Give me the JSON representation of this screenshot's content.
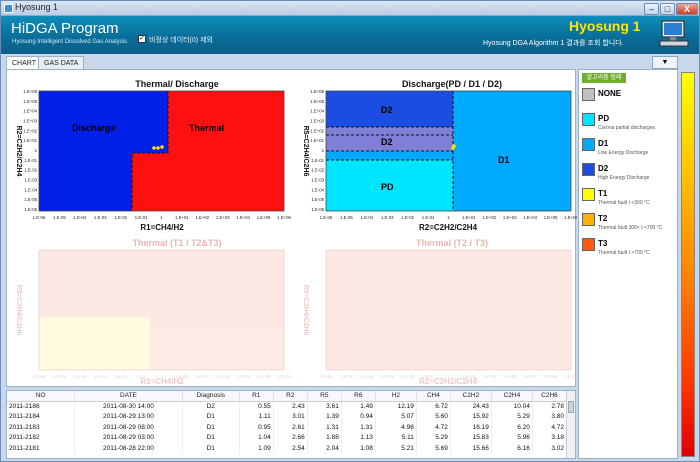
{
  "window": {
    "title": "Hyosung 1",
    "min": "–",
    "max": "□",
    "close": "X"
  },
  "header": {
    "program_title": "HiDGA Program",
    "program_subtitle": "Hyosung Intelligent Dissolved Gas Analysis",
    "checkbox_mark": "✓",
    "checkbox_label": "비정상 데이터(0) 제외",
    "brand": "Hyosung 1",
    "brand_sub": "Hyosung DGA Algorithm 1 결과를 조회 합니다."
  },
  "tabs": [
    {
      "label": "CHART"
    },
    {
      "label": "GAS DATA"
    }
  ],
  "dropdown_label": "▼",
  "charts": {
    "c1": {
      "title": "Thermal/ Discharge",
      "xlabel": "R1=CH4/H2",
      "ylabel": "R2=C2H2/C2H4",
      "regions": [
        {
          "label": "Discharge"
        },
        {
          "label": "Thermal"
        }
      ]
    },
    "c2": {
      "title": "Discharge(PD / D1 / D2)",
      "xlabel": "R2=C2H2/C2H4",
      "ylabel": "R5=C2H4/C2H6",
      "regions": [
        {
          "label": "D2"
        },
        {
          "label": "D2"
        },
        {
          "label": "PD"
        },
        {
          "label": "D1"
        }
      ]
    },
    "c3": {
      "title": "Thermal (T1 / T2&T3)",
      "xlabel": "R1=CH4/H2",
      "ylabel": "R5=C2H4/C2H6"
    },
    "c4": {
      "title": "Thermal (T2 / T3)",
      "xlabel": "R2=C2H2/C2H4",
      "ylabel": "R5=C2H4/C2H6"
    },
    "x_ticks": [
      "1.E-06",
      "1.E-05",
      "1.E-04",
      "1.E-03",
      "1.E-02",
      "1.E-01",
      "1",
      "1.E+01",
      "1.E+02",
      "1.E+03",
      "1.E+04",
      "1.E+05",
      "1.E+06"
    ],
    "y_ticks": [
      "1.E+06",
      "1.E+05",
      "1.E+04",
      "1.E+03",
      "1.E+02",
      "1.E+01",
      "1",
      "1.E-01",
      "1.E-02",
      "1.E-03",
      "1.E-04",
      "1.E-05",
      "1.E-06"
    ],
    "colors": {
      "discharge": "#0020e8",
      "thermal": "#ff1010",
      "d1": "#00aaff",
      "d2": "#1a4de0",
      "d2b": "#7f7fd8",
      "pd": "#00e5ff",
      "faded_bg": "#fde8e4",
      "faded_yellow": "#fffbe0"
    }
  },
  "legend": {
    "header": "알고리즘 범례",
    "items": [
      {
        "code": "NONE",
        "desc": "",
        "color": "#c0c0c0"
      },
      {
        "code": "PD",
        "desc": "Corona partial discharges",
        "color": "#00e5ff"
      },
      {
        "code": "D1",
        "desc": "Low Energy Discharge",
        "color": "#00aaff"
      },
      {
        "code": "D2",
        "desc": "High Energy Discharge",
        "color": "#1a4de0"
      },
      {
        "code": "T1",
        "desc": "Thermal fault t <300 °C",
        "color": "#ffff00"
      },
      {
        "code": "T2",
        "desc": "Thermal fault 300< t <700 °C",
        "color": "#ffb000"
      },
      {
        "code": "T3",
        "desc": "Thermal fault t >700 °C",
        "color": "#ff5a10"
      }
    ]
  },
  "table": {
    "columns": [
      "NO",
      "DATE",
      "Diagnosis",
      "R1",
      "R2",
      "R5",
      "R6",
      "H2",
      "CH4",
      "C2H2",
      "C2H4",
      "C2H6"
    ],
    "rows": [
      [
        "2011-2186",
        "2011-08-30 14:00",
        "D2",
        "0.55",
        "2.43",
        "3.61",
        "1.49",
        "12.19",
        "6.72",
        "24.43",
        "10.04",
        "2.78"
      ],
      [
        "2011-2184",
        "2011-08-29 13:00",
        "D1",
        "1.11",
        "3.01",
        "1.39",
        "0.94",
        "5.07",
        "5.60",
        "15.92",
        "5.29",
        "3.80"
      ],
      [
        "2011-2183",
        "2011-08-29 08:00",
        "D1",
        "0.95",
        "2.61",
        "1.31",
        "1.31",
        "4.98",
        "4.72",
        "16.19",
        "6.20",
        "4.72"
      ],
      [
        "2011-2182",
        "2011-08-29 03:00",
        "D1",
        "1.04",
        "2.66",
        "1.88",
        "1.13",
        "5.11",
        "5.29",
        "15.83",
        "5.96",
        "3.18"
      ],
      [
        "2011-2181",
        "2011-08-28 22:00",
        "D1",
        "1.09",
        "2.54",
        "2.04",
        "1.08",
        "5.21",
        "5.69",
        "15.66",
        "6.16",
        "3.02"
      ]
    ]
  }
}
